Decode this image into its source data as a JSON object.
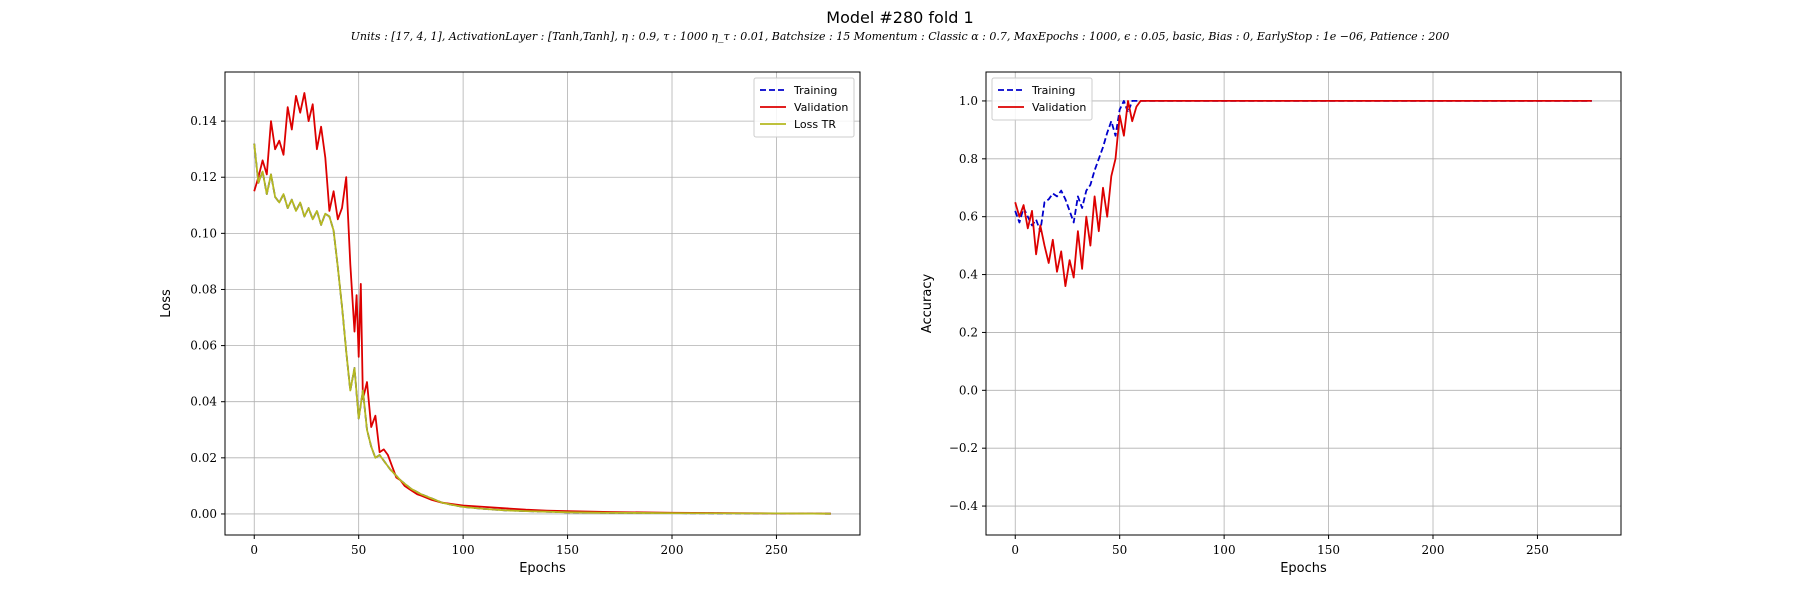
{
  "figure": {
    "title": "Model #280 fold 1",
    "subtitle": "Units : [17, 4, 1], ActivationLayer : [Tanh,Tanh], η : 0.9, τ : 1000 η_τ : 0.01, Batchsize : 15 Momentum : Classic α : 0.7, MaxEpochs : 1000, ϵ : 0.05, basic, Bias : 0, EarlyStop : 1e −06, Patience : 200"
  },
  "chart_data": [
    {
      "type": "line",
      "xlabel": "Epochs",
      "ylabel": "Loss",
      "xlim": [
        -14,
        290
      ],
      "ylim": [
        -0.0075,
        0.1575
      ],
      "xticks": [
        0,
        50,
        100,
        150,
        200,
        250
      ],
      "xtick_labels": [
        "0",
        "50",
        "100",
        "150",
        "200",
        "250"
      ],
      "yticks": [
        0.0,
        0.02,
        0.04,
        0.06,
        0.08,
        0.1,
        0.12,
        0.14
      ],
      "ytick_labels": [
        "0.00",
        "0.02",
        "0.04",
        "0.06",
        "0.08",
        "0.10",
        "0.12",
        "0.14"
      ],
      "grid": true,
      "legend": "top-right",
      "series": [
        {
          "name": "Training",
          "color": "#0000cc",
          "dash": "dashed",
          "x": [
            0,
            2,
            4,
            6,
            8,
            10,
            12,
            14,
            16,
            18,
            20,
            22,
            24,
            26,
            28,
            30,
            32,
            34,
            36,
            38,
            40,
            42,
            44,
            46,
            48,
            50,
            52,
            54,
            56,
            58,
            60,
            65,
            70,
            75,
            80,
            85,
            90,
            95,
            100,
            110,
            120,
            130,
            140,
            150,
            170,
            200,
            230,
            250,
            276
          ],
          "y": [
            0.132,
            0.118,
            0.122,
            0.114,
            0.121,
            0.113,
            0.111,
            0.114,
            0.109,
            0.112,
            0.108,
            0.111,
            0.106,
            0.109,
            0.105,
            0.108,
            0.103,
            0.107,
            0.106,
            0.101,
            0.088,
            0.074,
            0.058,
            0.044,
            0.052,
            0.034,
            0.044,
            0.03,
            0.024,
            0.02,
            0.021,
            0.016,
            0.012,
            0.009,
            0.007,
            0.0055,
            0.004,
            0.0032,
            0.0025,
            0.0018,
            0.0013,
            0.001,
            0.0008,
            0.0006,
            0.0004,
            0.0003,
            0.0002,
            0.0002,
            0.0001
          ]
        },
        {
          "name": "Validation",
          "color": "#dd0000",
          "dash": "solid",
          "x": [
            0,
            2,
            4,
            6,
            8,
            10,
            12,
            14,
            16,
            18,
            20,
            22,
            24,
            26,
            28,
            30,
            32,
            34,
            36,
            38,
            40,
            42,
            44,
            46,
            48,
            49,
            50,
            51,
            52,
            54,
            56,
            58,
            60,
            62,
            64,
            66,
            68,
            70,
            72,
            74,
            76,
            78,
            80,
            85,
            90,
            95,
            100,
            110,
            120,
            130,
            140,
            150,
            170,
            200,
            230,
            250,
            276
          ],
          "y": [
            0.115,
            0.12,
            0.126,
            0.121,
            0.14,
            0.13,
            0.133,
            0.128,
            0.145,
            0.137,
            0.149,
            0.143,
            0.15,
            0.14,
            0.146,
            0.13,
            0.138,
            0.127,
            0.108,
            0.115,
            0.105,
            0.109,
            0.12,
            0.089,
            0.065,
            0.078,
            0.056,
            0.082,
            0.041,
            0.047,
            0.031,
            0.035,
            0.022,
            0.023,
            0.021,
            0.017,
            0.013,
            0.012,
            0.01,
            0.009,
            0.008,
            0.007,
            0.0065,
            0.005,
            0.004,
            0.0035,
            0.003,
            0.0025,
            0.002,
            0.0015,
            0.0012,
            0.001,
            0.0007,
            0.0004,
            0.0003,
            0.0002,
            0.0001
          ]
        },
        {
          "name": "Loss TR",
          "color": "#b5b820",
          "dash": "solid",
          "x": [
            0,
            2,
            4,
            6,
            8,
            10,
            12,
            14,
            16,
            18,
            20,
            22,
            24,
            26,
            28,
            30,
            32,
            34,
            36,
            38,
            40,
            42,
            44,
            46,
            48,
            50,
            52,
            54,
            56,
            58,
            60,
            65,
            70,
            75,
            80,
            85,
            90,
            95,
            100,
            110,
            120,
            130,
            140,
            150,
            170,
            200,
            230,
            250,
            276
          ],
          "y": [
            0.132,
            0.118,
            0.122,
            0.114,
            0.121,
            0.113,
            0.111,
            0.114,
            0.109,
            0.112,
            0.108,
            0.111,
            0.106,
            0.109,
            0.105,
            0.108,
            0.103,
            0.107,
            0.106,
            0.101,
            0.088,
            0.074,
            0.058,
            0.044,
            0.052,
            0.034,
            0.044,
            0.03,
            0.024,
            0.02,
            0.021,
            0.016,
            0.012,
            0.009,
            0.007,
            0.0055,
            0.004,
            0.0032,
            0.0025,
            0.0018,
            0.0013,
            0.001,
            0.0008,
            0.0006,
            0.0004,
            0.0003,
            0.0002,
            0.0002,
            0.0001
          ]
        }
      ]
    },
    {
      "type": "line",
      "xlabel": "Epochs",
      "ylabel": "Accuracy",
      "xlim": [
        -14,
        290
      ],
      "ylim": [
        -0.5,
        1.1
      ],
      "xticks": [
        0,
        50,
        100,
        150,
        200,
        250
      ],
      "xtick_labels": [
        "0",
        "50",
        "100",
        "150",
        "200",
        "250"
      ],
      "yticks": [
        -0.4,
        -0.2,
        0.0,
        0.2,
        0.4,
        0.6,
        0.8,
        1.0
      ],
      "ytick_labels": [
        "−0.4",
        "−0.2",
        "0.0",
        "0.2",
        "0.4",
        "0.6",
        "0.8",
        "1.0"
      ],
      "grid": true,
      "legend": "top-left",
      "series": [
        {
          "name": "Training",
          "color": "#0000cc",
          "dash": "dashed",
          "x": [
            0,
            2,
            4,
            6,
            8,
            10,
            12,
            14,
            16,
            18,
            20,
            22,
            24,
            26,
            28,
            30,
            32,
            34,
            36,
            38,
            40,
            42,
            44,
            46,
            48,
            50,
            52,
            54,
            56,
            58,
            60,
            80,
            100,
            150,
            200,
            250,
            276
          ],
          "y": [
            0.62,
            0.58,
            0.63,
            0.6,
            0.57,
            0.59,
            0.55,
            0.65,
            0.66,
            0.68,
            0.67,
            0.69,
            0.66,
            0.62,
            0.58,
            0.67,
            0.63,
            0.69,
            0.71,
            0.76,
            0.8,
            0.84,
            0.89,
            0.93,
            0.88,
            0.97,
            1.0,
            0.96,
            1.0,
            1.0,
            1.0,
            1.0,
            1.0,
            1.0,
            1.0,
            1.0,
            1.0
          ]
        },
        {
          "name": "Validation",
          "color": "#dd0000",
          "dash": "solid",
          "x": [
            0,
            2,
            4,
            6,
            8,
            10,
            12,
            14,
            16,
            18,
            20,
            22,
            24,
            26,
            28,
            30,
            32,
            34,
            36,
            38,
            40,
            42,
            44,
            46,
            48,
            50,
            52,
            54,
            56,
            58,
            60,
            80,
            100,
            150,
            200,
            250,
            276
          ],
          "y": [
            0.65,
            0.6,
            0.64,
            0.56,
            0.62,
            0.47,
            0.57,
            0.5,
            0.44,
            0.52,
            0.41,
            0.48,
            0.36,
            0.45,
            0.39,
            0.55,
            0.42,
            0.6,
            0.5,
            0.67,
            0.55,
            0.7,
            0.6,
            0.74,
            0.8,
            0.95,
            0.88,
            1.0,
            0.93,
            0.98,
            1.0,
            1.0,
            1.0,
            1.0,
            1.0,
            1.0,
            1.0
          ]
        }
      ]
    }
  ]
}
